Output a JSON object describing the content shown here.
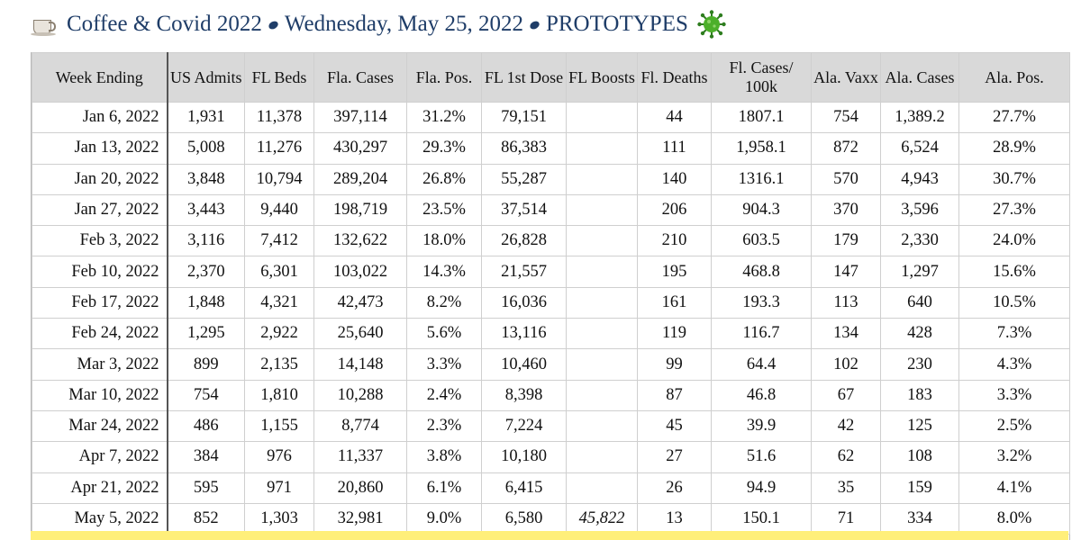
{
  "title": {
    "coffee_icon": "coffee-cup-icon",
    "part1": "Coffee & Covid 2022",
    "part2": "Wednesday, May 25, 2022",
    "part3": "PROTOTYPES",
    "separator_icon": "coffee-bean-icon",
    "virus_icon": "virus-icon"
  },
  "table": {
    "headers": [
      "Week Ending",
      "US Admits",
      "FL Beds",
      "Fla. Cases",
      "Fla. Pos.",
      "FL 1st Dose",
      "FL Boosts",
      "Fl. Deaths",
      "Fl. Cases/ 100k",
      "Ala. Vaxx",
      "Ala. Cases",
      "Ala. Pos."
    ],
    "rows": [
      [
        "Jan 6, 2022",
        "1,931",
        "11,378",
        "397,114",
        "31.2%",
        "79,151",
        "",
        "44",
        "1807.1",
        "754",
        "1,389.2",
        "27.7%"
      ],
      [
        "Jan 13, 2022",
        "5,008",
        "11,276",
        "430,297",
        "29.3%",
        "86,383",
        "",
        "111",
        "1,958.1",
        "872",
        "6,524",
        "28.9%"
      ],
      [
        "Jan 20, 2022",
        "3,848",
        "10,794",
        "289,204",
        "26.8%",
        "55,287",
        "",
        "140",
        "1316.1",
        "570",
        "4,943",
        "30.7%"
      ],
      [
        "Jan 27, 2022",
        "3,443",
        "9,440",
        "198,719",
        "23.5%",
        "37,514",
        "",
        "206",
        "904.3",
        "370",
        "3,596",
        "27.3%"
      ],
      [
        "Feb 3, 2022",
        "3,116",
        "7,412",
        "132,622",
        "18.0%",
        "26,828",
        "",
        "210",
        "603.5",
        "179",
        "2,330",
        "24.0%"
      ],
      [
        "Feb 10, 2022",
        "2,370",
        "6,301",
        "103,022",
        "14.3%",
        "21,557",
        "",
        "195",
        "468.8",
        "147",
        "1,297",
        "15.6%"
      ],
      [
        "Feb 17, 2022",
        "1,848",
        "4,321",
        "42,473",
        "8.2%",
        "16,036",
        "",
        "161",
        "193.3",
        "113",
        "640",
        "10.5%"
      ],
      [
        "Feb 24, 2022",
        "1,295",
        "2,922",
        "25,640",
        "5.6%",
        "13,116",
        "",
        "119",
        "116.7",
        "134",
        "428",
        "7.3%"
      ],
      [
        "Mar 3, 2022",
        "899",
        "2,135",
        "14,148",
        "3.3%",
        "10,460",
        "",
        "99",
        "64.4",
        "102",
        "230",
        "4.3%"
      ],
      [
        "Mar 10, 2022",
        "754",
        "1,810",
        "10,288",
        "2.4%",
        "8,398",
        "",
        "87",
        "46.8",
        "67",
        "183",
        "3.3%"
      ],
      [
        "Mar 24, 2022",
        "486",
        "1,155",
        "8,774",
        "2.3%",
        "7,224",
        "",
        "45",
        "39.9",
        "42",
        "125",
        "2.5%"
      ],
      [
        "Apr 7, 2022",
        "384",
        "976",
        "11,337",
        "3.8%",
        "10,180",
        "",
        "27",
        "51.6",
        "62",
        "108",
        "3.2%"
      ],
      [
        "Apr 21, 2022",
        "595",
        "971",
        "20,860",
        "6.1%",
        "6,415",
        "",
        "26",
        "94.9",
        "35",
        "159",
        "4.1%"
      ],
      [
        "May 5, 2022",
        "852",
        "1,303",
        "32,981",
        "9.0%",
        "6,580",
        "45,822",
        "13",
        "150.1",
        "71",
        "334",
        "8.0%"
      ]
    ]
  },
  "colors": {
    "title_text": "#1f3d68",
    "header_bg": "#d9d9d9",
    "highlight_row": "#ffef7a",
    "virus_green": "#3a9a2a"
  }
}
